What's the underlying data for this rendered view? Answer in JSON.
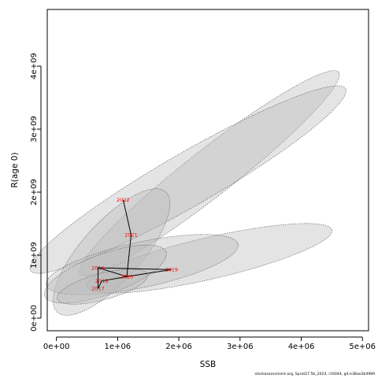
{
  "chart_data": {
    "type": "scatter",
    "title": "",
    "xlabel": "SSB",
    "ylabel": "R(age 0)",
    "xlim": [
      -150000,
      5100000
    ],
    "ylim": [
      -200000000,
      4900000000
    ],
    "x_ticks": [
      {
        "value": 0,
        "label": "0e+00"
      },
      {
        "value": 1000000,
        "label": "1e+06"
      },
      {
        "value": 2000000,
        "label": "2e+06"
      },
      {
        "value": 3000000,
        "label": "3e+06"
      },
      {
        "value": 4000000,
        "label": "4e+06"
      },
      {
        "value": 5000000,
        "label": "5e+06"
      }
    ],
    "y_ticks": [
      {
        "value": 0,
        "label": "0e+00"
      },
      {
        "value": 1000000000,
        "label": "1e+09"
      },
      {
        "value": 2000000000,
        "label": "2e+09"
      },
      {
        "value": 3000000000,
        "label": "3e+09"
      },
      {
        "value": 4000000000,
        "label": "4e+09"
      }
    ],
    "points": [
      {
        "year": "2016",
        "label": "2016",
        "x": 680000,
        "y": 800000000
      },
      {
        "year": "2017",
        "label": "2017",
        "x": 680000,
        "y": 470000000
      },
      {
        "year": "2018",
        "label": "2018",
        "x": 740000,
        "y": 590000000
      },
      {
        "year": "2019",
        "label": "2019",
        "x": 1880000,
        "y": 770000000
      },
      {
        "year": "2020",
        "label": "2020",
        "x": 1150000,
        "y": 660000000
      },
      {
        "year": "2021",
        "label": "2021",
        "x": 1220000,
        "y": 1320000000
      },
      {
        "year": "2022",
        "label": "2022",
        "x": 1090000,
        "y": 1880000000
      }
    ],
    "ellipses": [
      {
        "cx": 2500000,
        "cy": 2300000000,
        "rx": 2650000,
        "ry": 370000000,
        "angle": 38
      },
      {
        "cx": 2150000,
        "cy": 2200000000,
        "rx": 2950000,
        "ry": 420000000,
        "angle": 30
      },
      {
        "cx": 900000,
        "cy": 1050000000,
        "rx": 1300000,
        "ry": 470000000,
        "angle": 48
      },
      {
        "cx": 2500000,
        "cy": 950000000,
        "rx": 2050000,
        "ry": 330000000,
        "angle": 13
      },
      {
        "cx": 1400000,
        "cy": 850000000,
        "rx": 1600000,
        "ry": 360000000,
        "angle": 12
      },
      {
        "cx": 800000,
        "cy": 700000000,
        "rx": 1050000,
        "ry": 320000000,
        "angle": 20
      },
      {
        "cx": 750000,
        "cy": 500000000,
        "rx": 760000,
        "ry": 210000000,
        "angle": 15
      }
    ],
    "path_order": [
      "2016",
      "2019",
      "2020",
      "2018",
      "2017",
      "2016",
      "2020",
      "2021",
      "2022"
    ],
    "ellipse_fill": "#b8b8b8",
    "ellipse_stroke": "#555555",
    "label_color": "#ff0000",
    "path_color": "#000000",
    "grid": false,
    "legend": "none"
  },
  "credit": "stockassessment.org, Sprat27.5b_2024, r16044, git:e38ae2b4989"
}
